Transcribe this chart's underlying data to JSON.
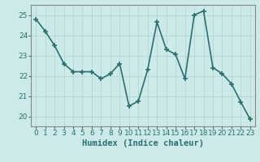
{
  "x": [
    0,
    1,
    2,
    3,
    4,
    5,
    6,
    7,
    8,
    9,
    10,
    11,
    12,
    13,
    14,
    15,
    16,
    17,
    18,
    19,
    20,
    21,
    22,
    23
  ],
  "y": [
    24.8,
    24.2,
    23.5,
    22.6,
    22.2,
    22.2,
    22.2,
    21.85,
    22.1,
    22.6,
    20.5,
    20.75,
    22.3,
    24.65,
    23.3,
    23.05,
    21.85,
    25.0,
    25.2,
    22.4,
    22.1,
    21.6,
    20.7,
    19.85
  ],
  "line_color": "#2d6e6e",
  "marker": "+",
  "marker_size": 4,
  "bg_color": "#cceaea",
  "grid_color": "#b8d8d8",
  "xlabel": "Humidex (Indice chaleur)",
  "ylim": [
    19.5,
    25.5
  ],
  "xlim": [
    -0.5,
    23.5
  ],
  "yticks": [
    20,
    21,
    22,
    23,
    24,
    25
  ],
  "xticks": [
    0,
    1,
    2,
    3,
    4,
    5,
    6,
    7,
    8,
    9,
    10,
    11,
    12,
    13,
    14,
    15,
    16,
    17,
    18,
    19,
    20,
    21,
    22,
    23
  ],
  "tick_fontsize": 6.5,
  "xlabel_fontsize": 7.5,
  "linewidth": 1.2
}
